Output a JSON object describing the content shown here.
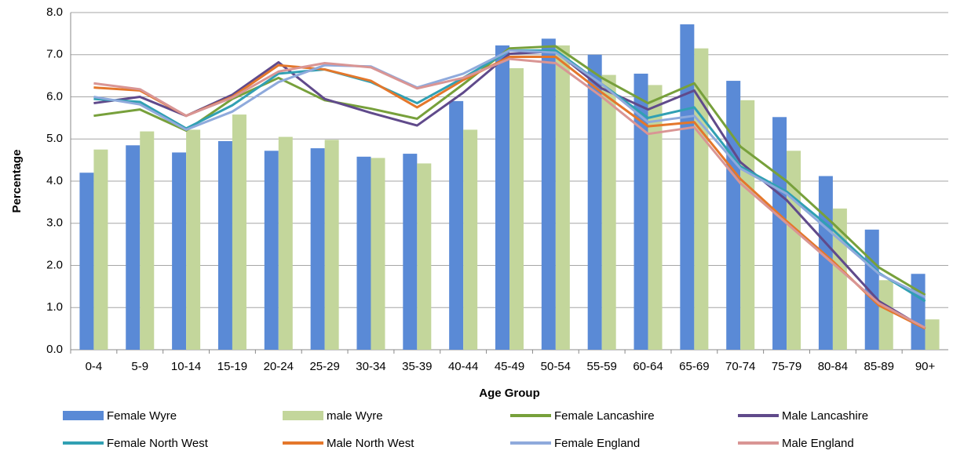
{
  "chart_data": {
    "type": "bar_line",
    "x_label": "Age Group",
    "y_label": "Percentage",
    "categories": [
      "0-4",
      "5-9",
      "10-14",
      "15-19",
      "20-24",
      "25-29",
      "30-34",
      "35-39",
      "40-44",
      "45-49",
      "50-54",
      "55-59",
      "60-64",
      "65-69",
      "70-74",
      "75-79",
      "80-84",
      "85-89",
      "90+"
    ],
    "ylim": [
      0,
      8
    ],
    "yticks": [
      {
        "value": 0,
        "label": "0.0"
      },
      {
        "value": 1,
        "label": "1.0"
      },
      {
        "value": 2,
        "label": "2.0"
      },
      {
        "value": 3,
        "label": "3.0"
      },
      {
        "value": 4,
        "label": "4.0"
      },
      {
        "value": 5,
        "label": "5.0"
      },
      {
        "value": 6,
        "label": "6.0"
      },
      {
        "value": 7,
        "label": "7.0"
      },
      {
        "value": 8,
        "label": "8.0"
      }
    ],
    "grid": true,
    "series": [
      {
        "name": "Female Wyre",
        "kind": "bar",
        "color": "#5a8ad6",
        "values": [
          4.2,
          4.85,
          4.68,
          4.95,
          4.72,
          4.78,
          4.58,
          4.65,
          5.9,
          7.22,
          7.38,
          7.0,
          6.55,
          7.72,
          6.38,
          5.52,
          4.12,
          2.85,
          1.8
        ]
      },
      {
        "name": "male Wyre",
        "kind": "bar",
        "color": "#c3d69b",
        "values": [
          4.75,
          5.18,
          5.22,
          5.58,
          5.05,
          4.98,
          4.55,
          4.42,
          5.22,
          6.68,
          7.22,
          6.52,
          6.28,
          7.15,
          5.92,
          4.72,
          3.35,
          1.65,
          0.72
        ]
      },
      {
        "name": "Female Lancashire",
        "kind": "line",
        "color": "#77a03b",
        "values": [
          5.55,
          5.7,
          5.2,
          5.95,
          6.45,
          5.92,
          5.72,
          5.48,
          6.3,
          7.15,
          7.2,
          6.45,
          5.85,
          6.32,
          4.82,
          4.0,
          3.0,
          1.95,
          1.3
        ]
      },
      {
        "name": "Male Lancashire",
        "kind": "line",
        "color": "#604a8b",
        "values": [
          5.85,
          6.0,
          5.55,
          6.05,
          6.82,
          5.95,
          5.62,
          5.32,
          6.1,
          7.02,
          7.08,
          6.2,
          5.7,
          6.15,
          4.45,
          3.55,
          2.35,
          1.15,
          0.5
        ]
      },
      {
        "name": "Female North West",
        "kind": "line",
        "color": "#31a0b3",
        "values": [
          5.95,
          5.88,
          5.25,
          5.8,
          6.55,
          6.65,
          6.35,
          5.85,
          6.45,
          7.1,
          7.1,
          6.3,
          5.5,
          5.75,
          4.35,
          3.75,
          2.85,
          1.82,
          1.15
        ]
      },
      {
        "name": "Male North West",
        "kind": "line",
        "color": "#e4772b",
        "values": [
          6.22,
          6.15,
          5.55,
          6.0,
          6.75,
          6.65,
          6.38,
          5.75,
          6.4,
          6.95,
          6.95,
          6.1,
          5.3,
          5.4,
          4.05,
          3.05,
          2.1,
          1.05,
          0.5
        ]
      },
      {
        "name": "Female England",
        "kind": "line",
        "color": "#8faadc",
        "values": [
          6.0,
          5.82,
          5.22,
          5.65,
          6.35,
          6.75,
          6.72,
          6.22,
          6.55,
          7.1,
          7.05,
          6.3,
          5.4,
          5.55,
          4.3,
          3.7,
          2.75,
          1.8,
          1.25
        ]
      },
      {
        "name": "Male England",
        "kind": "line",
        "color": "#d99594",
        "values": [
          6.32,
          6.18,
          5.55,
          5.98,
          6.6,
          6.8,
          6.7,
          6.2,
          6.45,
          6.9,
          6.8,
          6.0,
          5.12,
          5.28,
          3.95,
          3.0,
          2.05,
          1.1,
          0.52
        ]
      }
    ]
  }
}
